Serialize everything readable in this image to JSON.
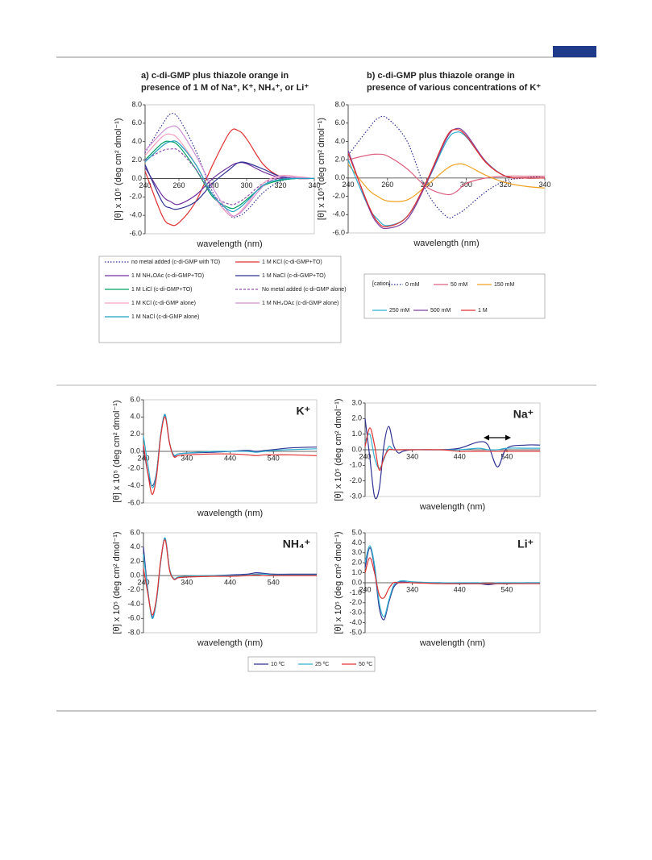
{
  "chart_data": [
    {
      "type": "line",
      "title": [
        "a) c-di-GMP plus thiazole orange in",
        "presence of 1 M of Na⁺, K⁺, NH₄⁺, or Li⁺"
      ],
      "x_label": "wavelength (nm)",
      "y_label": "[θ] x 10⁵ (deg cm² dmol⁻¹)",
      "xlim": [
        240,
        340
      ],
      "ylim": [
        -6,
        8
      ],
      "xticks": [
        240,
        260,
        280,
        300,
        320,
        340
      ],
      "yticks": [
        {
          "value": -6,
          "label": "-6.0"
        },
        {
          "value": -4,
          "label": "-4.0"
        },
        {
          "value": -2,
          "label": "-2.0"
        },
        {
          "value": 0,
          "label": "0.0"
        },
        {
          "value": 2,
          "label": "2.0"
        },
        {
          "value": 4,
          "label": "4.0"
        },
        {
          "value": 6,
          "label": "6.0"
        },
        {
          "value": 8,
          "label": "8.0"
        }
      ],
      "x": [
        240,
        250,
        255,
        260,
        270,
        280,
        290,
        295,
        300,
        310,
        320,
        330,
        340
      ],
      "series": [
        {
          "name": "no metal added (c-di-GMP with TO)",
          "color": "#2e3192",
          "dash": "dotted",
          "values": [
            2.8,
            5.8,
            7.0,
            6.5,
            3.0,
            -1.5,
            -4.0,
            -4.1,
            -3.5,
            -1.5,
            -0.3,
            0,
            0
          ]
        },
        {
          "name": "1 M KCl (c-di-GMP+TO)",
          "color": "#e03030",
          "values": [
            0.8,
            -4.0,
            -5.0,
            -4.8,
            -2.5,
            1.5,
            5.0,
            5.2,
            4.3,
            1.5,
            0.2,
            0,
            0
          ]
        },
        {
          "name": "1 M NH₄OAc (c-di-GMP+TO)",
          "color": "#7030a0",
          "values": [
            1.2,
            -1.8,
            -2.5,
            -2.8,
            -1.8,
            0,
            1.3,
            1.7,
            1.6,
            0.7,
            0.1,
            0,
            0
          ]
        },
        {
          "name": "1 M NaCl (c-di-GMP+TO)",
          "color": "#2e3192",
          "values": [
            1.5,
            -2.5,
            -3.2,
            -3.3,
            -2.5,
            -0.5,
            1.0,
            1.7,
            1.7,
            1.0,
            0.2,
            0,
            0
          ]
        },
        {
          "name": "1 M LiCl (c-di-GMP+TO)",
          "color": "#00a060",
          "values": [
            2.0,
            3.8,
            4.0,
            3.5,
            1.0,
            -2.0,
            -3.2,
            -3.0,
            -2.3,
            -0.8,
            -0.2,
            0,
            0
          ]
        },
        {
          "name": "No metal added (c-di-GMP alone)",
          "color": "#9050b0",
          "dash": "dashed",
          "values": [
            2.0,
            3.0,
            3.2,
            3.0,
            1.0,
            -1.8,
            -2.8,
            -2.6,
            -2.0,
            -0.5,
            0,
            0,
            0
          ]
        },
        {
          "name": "1 M KCl (c-di-GMP alone)",
          "color": "#f4a0c0",
          "values": [
            2.5,
            4.5,
            4.8,
            4.2,
            1.5,
            -1.8,
            -4.0,
            -3.8,
            -2.8,
            -0.5,
            0.3,
            0.2,
            0
          ]
        },
        {
          "name": "1 M NH₄OAc (c-di-GMP alone)",
          "color": "#d090d8",
          "values": [
            3.0,
            5.0,
            5.6,
            5.4,
            2.5,
            -1.0,
            -3.8,
            -3.9,
            -3.0,
            -0.8,
            0.2,
            0.1,
            0
          ]
        },
        {
          "name": "1 M NaCl (c-di-GMP alone)",
          "color": "#20a0c0",
          "values": [
            1.8,
            3.5,
            4.0,
            3.8,
            1.5,
            -1.8,
            -3.5,
            -3.3,
            -2.5,
            -0.7,
            -0.1,
            0,
            0
          ]
        }
      ]
    },
    {
      "type": "line",
      "title": [
        "b) c-di-GMP plus thiazole orange in",
        "presence of various concentrations of K⁺"
      ],
      "x_label": "wavelength (nm)",
      "y_label": "[θ] x 10⁵ (deg cm² dmol⁻¹)",
      "legend_title": "[cation]",
      "xlim": [
        240,
        340
      ],
      "ylim": [
        -6,
        8
      ],
      "xticks": [
        240,
        260,
        280,
        300,
        320,
        340
      ],
      "yticks": [
        {
          "value": -6,
          "label": "-6.0"
        },
        {
          "value": -4,
          "label": "-4.0"
        },
        {
          "value": -2,
          "label": "-2.0"
        },
        {
          "value": 0,
          "label": "0.0"
        },
        {
          "value": 2,
          "label": "2.0"
        },
        {
          "value": 4,
          "label": "4.0"
        },
        {
          "value": 6,
          "label": "6.0"
        },
        {
          "value": 8,
          "label": "8.0"
        }
      ],
      "x": [
        240,
        250,
        255,
        260,
        270,
        280,
        290,
        295,
        300,
        310,
        320,
        330,
        340
      ],
      "series": [
        {
          "name": "0 mM",
          "color": "#2e3192",
          "dash": "dotted",
          "values": [
            2.5,
            5.3,
            6.5,
            6.5,
            4.0,
            -1.5,
            -4.2,
            -4.0,
            -3.3,
            -1.5,
            -0.3,
            0,
            0.2
          ]
        },
        {
          "name": "50 mM",
          "color": "#e06080",
          "values": [
            2.0,
            2.5,
            2.6,
            2.4,
            1.0,
            -1.0,
            -1.8,
            -1.5,
            -0.6,
            0,
            0.2,
            0.2,
            0.2
          ]
        },
        {
          "name": "150 mM",
          "color": "#f0a020",
          "values": [
            1.5,
            -1.2,
            -2.0,
            -2.5,
            -2.4,
            -0.8,
            1.0,
            1.5,
            1.4,
            0.3,
            -0.5,
            -0.9,
            -1.1
          ]
        },
        {
          "name": "250 mM",
          "color": "#30b0d0",
          "values": [
            2.0,
            -3.0,
            -4.5,
            -5.2,
            -4.2,
            -0.5,
            4.0,
            5.0,
            4.5,
            1.8,
            0.2,
            0,
            0
          ]
        },
        {
          "name": "500 mM",
          "color": "#8040a0",
          "values": [
            3.0,
            -3.0,
            -5.0,
            -5.5,
            -4.5,
            -0.5,
            4.3,
            5.4,
            4.8,
            1.8,
            0.2,
            0,
            0
          ]
        },
        {
          "name": "1 M",
          "color": "#e03030",
          "values": [
            2.7,
            -2.8,
            -4.8,
            -5.3,
            -4.2,
            -0.3,
            4.5,
            5.3,
            4.6,
            1.7,
            0.2,
            0,
            0
          ]
        }
      ]
    },
    {
      "type": "line",
      "annotation": "K⁺",
      "x_label": "wavelength (nm)",
      "y_label": "[θ] x 10⁵ (deg cm² dmol⁻¹)",
      "xlim": [
        240,
        640
      ],
      "ylim": [
        -6,
        6
      ],
      "xticks": [
        240,
        340,
        440,
        540
      ],
      "yticks": [
        {
          "value": -6,
          "label": "-6.0"
        },
        {
          "value": -4,
          "label": "-4.0"
        },
        {
          "value": -2,
          "label": "-2.0"
        },
        {
          "value": 0,
          "label": "0.0"
        },
        {
          "value": 2,
          "label": "2.0"
        },
        {
          "value": 4,
          "label": "4.0"
        },
        {
          "value": 6,
          "label": "6.0"
        }
      ],
      "x": [
        240,
        250,
        260,
        270,
        280,
        290,
        300,
        310,
        320,
        340,
        400,
        440,
        480,
        500,
        520,
        540,
        580,
        640
      ],
      "series": [
        {
          "name": "10 ºC",
          "color": "#2e3192",
          "values": [
            0.5,
            -2.5,
            -4.0,
            -2.5,
            2.0,
            4.2,
            1.0,
            -0.5,
            -0.3,
            -0.2,
            -0.1,
            0,
            0.1,
            0,
            0.1,
            0.2,
            0.4,
            0.5
          ]
        },
        {
          "name": "25 ºC",
          "color": "#30b0d0",
          "values": [
            1.8,
            -1.5,
            -4.2,
            -2.6,
            2.0,
            4.3,
            1.0,
            -0.4,
            -0.3,
            -0.2,
            0,
            0,
            0,
            -0.1,
            0,
            0.1,
            0.2,
            0.3
          ]
        },
        {
          "name": "50 ºC",
          "color": "#e03030",
          "values": [
            0.8,
            -2.5,
            -5.0,
            -3.0,
            1.8,
            4.0,
            1.0,
            -0.6,
            -0.5,
            -0.4,
            -0.3,
            -0.3,
            -0.4,
            -0.5,
            -0.4,
            -0.4,
            -0.4,
            -0.5
          ]
        }
      ]
    },
    {
      "type": "line",
      "annotation": "Na⁺",
      "x_label": "wavelength (nm)",
      "y_label": "[θ] x 10⁵ (deg cm² dmol⁻¹)",
      "xlim": [
        240,
        610
      ],
      "ylim": [
        -3,
        3
      ],
      "xticks": [
        240,
        340,
        440,
        540
      ],
      "yticks": [
        {
          "value": -3,
          "label": "-3.0"
        },
        {
          "value": -2,
          "label": "-2.0"
        },
        {
          "value": -1,
          "label": "-1.0"
        },
        {
          "value": 0,
          "label": "0.0"
        },
        {
          "value": 1,
          "label": "1.0"
        },
        {
          "value": 2,
          "label": "2.0"
        },
        {
          "value": 3,
          "label": "3.0"
        }
      ],
      "x": [
        240,
        250,
        260,
        270,
        280,
        290,
        300,
        310,
        320,
        340,
        400,
        440,
        480,
        500,
        520,
        540,
        580,
        610
      ],
      "series": [
        {
          "name": "10 ºC",
          "color": "#2e3192",
          "values": [
            2.0,
            -0.5,
            -3.0,
            -2.5,
            0.3,
            1.5,
            0.3,
            -0.2,
            -0.1,
            0,
            0,
            0.1,
            0.5,
            0.3,
            -1.1,
            0.1,
            0.3,
            0.3
          ]
        },
        {
          "name": "25 ºC",
          "color": "#30b0d0",
          "values": [
            0.5,
            1.0,
            -0.5,
            -1.2,
            -0.6,
            0.2,
            0,
            0,
            0,
            0,
            0,
            0,
            0.1,
            0,
            0,
            0.1,
            0.1,
            0.1
          ]
        },
        {
          "name": "50 ºC",
          "color": "#e03030",
          "values": [
            0.2,
            1.4,
            0.3,
            -1.3,
            -0.5,
            0,
            0,
            0,
            0,
            0,
            0,
            -0.1,
            -0.1,
            -0.1,
            -0.1,
            -0.1,
            -0.1,
            -0.1
          ]
        }
      ]
    },
    {
      "type": "line",
      "annotation": "NH₄⁺",
      "x_label": "wavelength (nm)",
      "y_label": "[θ] x 10⁵ (deg cm² dmol⁻¹)",
      "xlim": [
        240,
        640
      ],
      "ylim": [
        -8,
        6
      ],
      "xticks": [
        240,
        340,
        440,
        540
      ],
      "yticks": [
        {
          "value": -8,
          "label": "-8.0"
        },
        {
          "value": -6,
          "label": "-6.0"
        },
        {
          "value": -4,
          "label": "-4.0"
        },
        {
          "value": -2,
          "label": "-2.0"
        },
        {
          "value": 0,
          "label": "0.0"
        },
        {
          "value": 2,
          "label": "2.0"
        },
        {
          "value": 4,
          "label": "4.0"
        },
        {
          "value": 6,
          "label": "6.0"
        }
      ],
      "x": [
        240,
        250,
        260,
        270,
        280,
        290,
        300,
        310,
        320,
        340,
        400,
        440,
        480,
        500,
        520,
        540,
        580,
        640
      ],
      "series": [
        {
          "name": "10 ºC",
          "color": "#2e3192",
          "values": [
            4.0,
            -2.0,
            -5.8,
            -3.5,
            2.0,
            5.2,
            1.0,
            -0.5,
            -0.3,
            -0.2,
            0,
            0.1,
            0.2,
            0.4,
            0.3,
            0.2,
            0.2,
            0.2
          ]
        },
        {
          "name": "25 ºC",
          "color": "#30b0d0",
          "values": [
            3.0,
            -2.2,
            -6.0,
            -3.6,
            2.0,
            5.3,
            1.0,
            -0.4,
            -0.2,
            -0.1,
            0,
            0,
            0.1,
            0.2,
            0.2,
            0.1,
            0.1,
            0.1
          ]
        },
        {
          "name": "50 ºC",
          "color": "#e03030",
          "values": [
            1.0,
            -2.5,
            -5.5,
            -3.2,
            2.2,
            5.0,
            0.8,
            -0.5,
            -0.3,
            -0.2,
            -0.1,
            -0.1,
            0,
            0.1,
            0,
            0,
            0,
            0
          ]
        }
      ]
    },
    {
      "type": "line",
      "annotation": "Li⁺",
      "x_label": "wavelength (nm)",
      "y_label": "[θ] x 10⁵ (deg cm² dmol⁻¹)",
      "xlim": [
        240,
        610
      ],
      "ylim": [
        -5,
        5
      ],
      "xticks": [
        240,
        340,
        440,
        540
      ],
      "yticks": [
        {
          "value": -5,
          "label": "-5.0"
        },
        {
          "value": -4,
          "label": "-4.0"
        },
        {
          "value": -3,
          "label": "-3.0"
        },
        {
          "value": -2,
          "label": "-2.0"
        },
        {
          "value": -1,
          "label": "-1.0"
        },
        {
          "value": 0,
          "label": "0.0"
        },
        {
          "value": 1,
          "label": "1.0"
        },
        {
          "value": 2,
          "label": "2.0"
        },
        {
          "value": 3,
          "label": "3.0"
        },
        {
          "value": 4,
          "label": "4.0"
        },
        {
          "value": 5,
          "label": "5.0"
        }
      ],
      "x": [
        240,
        250,
        260,
        270,
        280,
        290,
        300,
        310,
        320,
        340,
        400,
        440,
        480,
        500,
        520,
        540,
        580,
        610
      ],
      "series": [
        {
          "name": "10 ºC",
          "color": "#2e3192",
          "values": [
            1.5,
            3.5,
            1.5,
            -2.5,
            -3.7,
            -2.0,
            -0.5,
            0,
            0.1,
            0,
            0,
            -0.1,
            -0.1,
            -0.2,
            -0.1,
            -0.1,
            0,
            0
          ]
        },
        {
          "name": "25 ºC",
          "color": "#30b0d0",
          "values": [
            2.0,
            3.7,
            1.8,
            -2.0,
            -3.4,
            -1.8,
            -0.3,
            0.1,
            0.2,
            0.1,
            0,
            0,
            0,
            -0.1,
            0,
            0,
            0,
            0
          ]
        },
        {
          "name": "50 ºC",
          "color": "#e03030",
          "values": [
            1.0,
            2.5,
            1.0,
            -1.2,
            -1.5,
            -0.6,
            0,
            0,
            0,
            0,
            -0.1,
            -0.1,
            -0.1,
            -0.1,
            -0.1,
            -0.1,
            -0.1,
            -0.1
          ]
        }
      ]
    }
  ]
}
